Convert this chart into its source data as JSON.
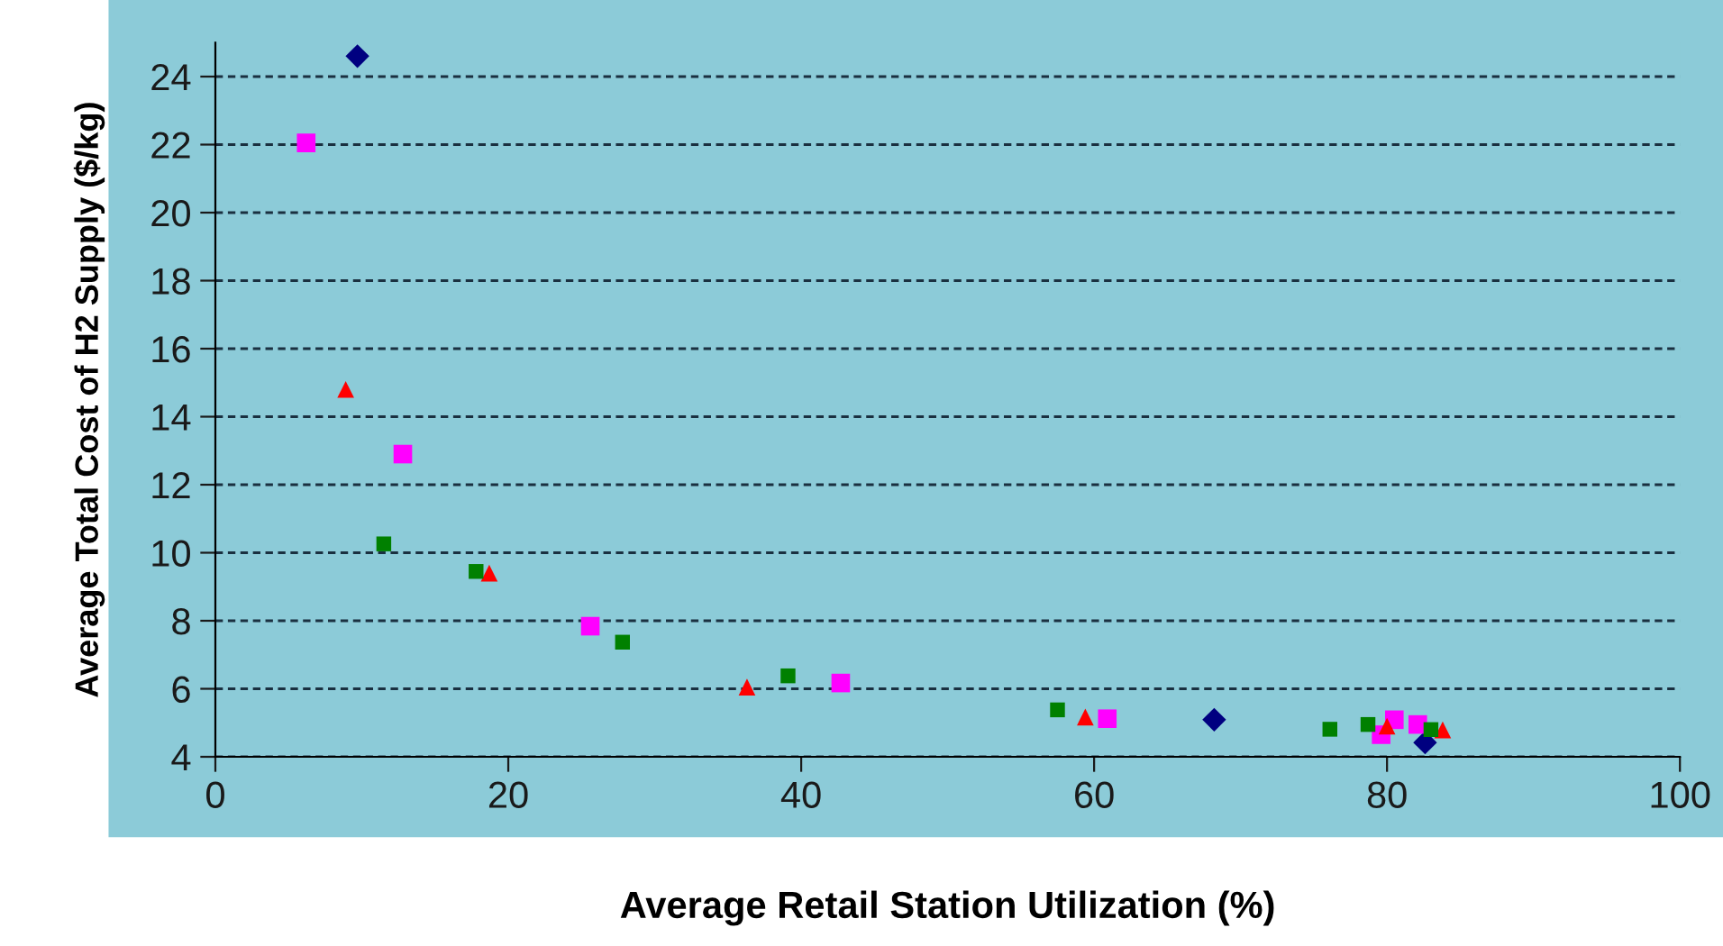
{
  "chart_data": {
    "type": "scatter",
    "xlabel": "Average Retail Station Utilization (%)",
    "ylabel": "Average Total Cost of H2 Supply ($/kg)",
    "xlim": [
      0,
      100
    ],
    "xticks": [
      0,
      20,
      40,
      60,
      80,
      100
    ],
    "ylim": [
      4,
      25
    ],
    "yticks": [
      4,
      6,
      8,
      10,
      12,
      14,
      16,
      18,
      20,
      22,
      24
    ],
    "grid": "y",
    "legend": false,
    "series": [
      {
        "color": "#000080",
        "marker": "diamond",
        "x": [
          9.7,
          68.2,
          82.6
        ],
        "values": [
          24.6,
          5.09,
          4.42
        ]
      },
      {
        "color": "#ff00ff",
        "marker": "square",
        "x": [
          6.2,
          12.8,
          25.6,
          42.7,
          60.9,
          79.6,
          80.5,
          82.1
        ],
        "values": [
          22.05,
          12.9,
          7.84,
          6.17,
          5.12,
          4.65,
          5.09,
          4.95
        ]
      },
      {
        "color": "#ff0000",
        "marker": "triangle",
        "x": [
          8.9,
          18.7,
          36.3,
          59.4,
          80.0,
          83.8
        ],
        "values": [
          14.8,
          9.4,
          6.05,
          5.17,
          4.9,
          4.79
        ]
      },
      {
        "color": "#008000",
        "marker": "square",
        "x": [
          11.5,
          17.8,
          27.8,
          39.1,
          57.5,
          76.1,
          78.7,
          83.0
        ],
        "values": [
          10.26,
          9.45,
          7.37,
          6.38,
          5.38,
          4.81,
          4.95,
          4.8
        ]
      }
    ]
  }
}
